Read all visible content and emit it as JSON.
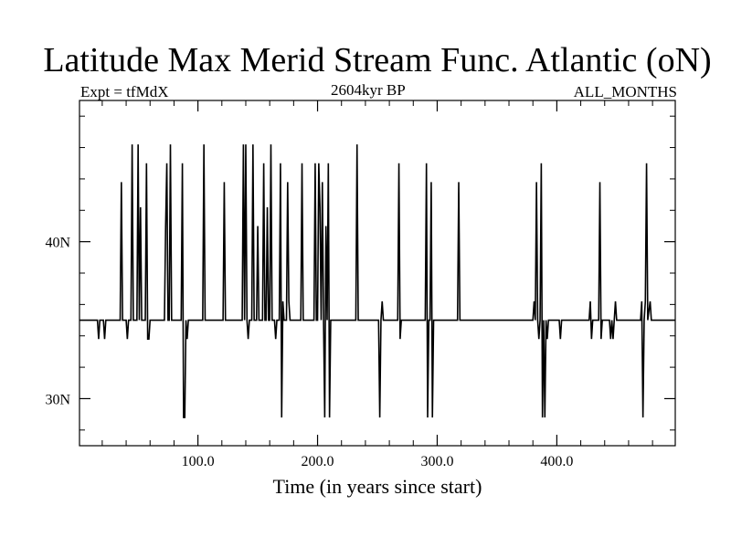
{
  "header": {
    "title": "Latitude Max Merid Stream Func. Atlantic (oN)",
    "experiment": "Expt = tfMdX",
    "period": "2604kyr BP",
    "months": "ALL_MONTHS"
  },
  "chart_data": {
    "type": "line",
    "title": "Latitude Max Merid Stream Func. Atlantic (oN)",
    "xlabel": "Time (in years since start)",
    "ylabel": "",
    "xlim": [
      1,
      499
    ],
    "ylim": [
      27,
      49
    ],
    "x_ticks": [
      100,
      200,
      300,
      400
    ],
    "x_tick_labels": [
      "100.0",
      "200.0",
      "300.0",
      "400.0"
    ],
    "y_ticks": [
      30,
      40
    ],
    "y_tick_labels": [
      "30N",
      "40N"
    ],
    "baseline": 35,
    "series": [
      {
        "points": [
          [
            1,
            35
          ],
          [
            16,
            35
          ],
          [
            17,
            33.8
          ],
          [
            18,
            35
          ],
          [
            21,
            35
          ],
          [
            22,
            33.8
          ],
          [
            23,
            35
          ],
          [
            35,
            35
          ],
          [
            36,
            43.8
          ],
          [
            37,
            35
          ],
          [
            40,
            35
          ],
          [
            41,
            33.8
          ],
          [
            42,
            35
          ],
          [
            44,
            35
          ],
          [
            45,
            46.2
          ],
          [
            46,
            35
          ],
          [
            49,
            35
          ],
          [
            50,
            46.2
          ],
          [
            51,
            35
          ],
          [
            52,
            42.2
          ],
          [
            53,
            35
          ],
          [
            56,
            35
          ],
          [
            57,
            45
          ],
          [
            58,
            33.8
          ],
          [
            59,
            33.8
          ],
          [
            60,
            35
          ],
          [
            72,
            35
          ],
          [
            73,
            41
          ],
          [
            74,
            45
          ],
          [
            75,
            35
          ],
          [
            76,
            35
          ],
          [
            77,
            46.2
          ],
          [
            78,
            35
          ],
          [
            86,
            35
          ],
          [
            87,
            45
          ],
          [
            88,
            28.8
          ],
          [
            89,
            28.8
          ],
          [
            90,
            35
          ],
          [
            91,
            33.8
          ],
          [
            92,
            35
          ],
          [
            104,
            35
          ],
          [
            105,
            46.2
          ],
          [
            106,
            35
          ],
          [
            121,
            35
          ],
          [
            122,
            43.8
          ],
          [
            123,
            35
          ],
          [
            137,
            35
          ],
          [
            138,
            46.2
          ],
          [
            139,
            35
          ],
          [
            140,
            46.2
          ],
          [
            141,
            35
          ],
          [
            142,
            33.8
          ],
          [
            143,
            35
          ],
          [
            145,
            35
          ],
          [
            146,
            46.2
          ],
          [
            147,
            35
          ],
          [
            149,
            35
          ],
          [
            150,
            41
          ],
          [
            151,
            35
          ],
          [
            154,
            35
          ],
          [
            155,
            45
          ],
          [
            156,
            35
          ],
          [
            157,
            35
          ],
          [
            158,
            42.2
          ],
          [
            159,
            35
          ],
          [
            160,
            35
          ],
          [
            161,
            46.2
          ],
          [
            162,
            35
          ],
          [
            164,
            35
          ],
          [
            165,
            33.8
          ],
          [
            166,
            35
          ],
          [
            168,
            35
          ],
          [
            169,
            45
          ],
          [
            170,
            28.8
          ],
          [
            171,
            36.2
          ],
          [
            172,
            35
          ],
          [
            174,
            35
          ],
          [
            175,
            43.8
          ],
          [
            176,
            36.2
          ],
          [
            177,
            35
          ],
          [
            186,
            35
          ],
          [
            187,
            45
          ],
          [
            188,
            35
          ],
          [
            197,
            35
          ],
          [
            198,
            45
          ],
          [
            199,
            35
          ],
          [
            200,
            35
          ],
          [
            201,
            45
          ],
          [
            202,
            42.2
          ],
          [
            203,
            35
          ],
          [
            204,
            43.8
          ],
          [
            205,
            35
          ],
          [
            206,
            28.8
          ],
          [
            207,
            41
          ],
          [
            208,
            35
          ],
          [
            209,
            45
          ],
          [
            210,
            28.8
          ],
          [
            211,
            35
          ],
          [
            213,
            35
          ],
          [
            232,
            35
          ],
          [
            233,
            46.2
          ],
          [
            234,
            35
          ],
          [
            251,
            35
          ],
          [
            252,
            28.8
          ],
          [
            253,
            35
          ],
          [
            254,
            36.2
          ],
          [
            255,
            35
          ],
          [
            267,
            35
          ],
          [
            268,
            45
          ],
          [
            269,
            33.8
          ],
          [
            270,
            35
          ],
          [
            290,
            35
          ],
          [
            291,
            45
          ],
          [
            292,
            28.8
          ],
          [
            293,
            35
          ],
          [
            294,
            35
          ],
          [
            295,
            43.8
          ],
          [
            296,
            28.8
          ],
          [
            297,
            35
          ],
          [
            317,
            35
          ],
          [
            318,
            43.8
          ],
          [
            319,
            35
          ],
          [
            380,
            35
          ],
          [
            381,
            36.2
          ],
          [
            382,
            35
          ],
          [
            383,
            43.8
          ],
          [
            384,
            35
          ],
          [
            385,
            33.8
          ],
          [
            386,
            35
          ],
          [
            387,
            45
          ],
          [
            388,
            28.8
          ],
          [
            389,
            35
          ],
          [
            390,
            28.8
          ],
          [
            391,
            35
          ],
          [
            392,
            33.8
          ],
          [
            393,
            35
          ],
          [
            402,
            35
          ],
          [
            403,
            33.8
          ],
          [
            404,
            35
          ],
          [
            427,
            35
          ],
          [
            428,
            36.2
          ],
          [
            429,
            33.8
          ],
          [
            430,
            35
          ],
          [
            435,
            35
          ],
          [
            436,
            43.8
          ],
          [
            437,
            33.8
          ],
          [
            438,
            35
          ],
          [
            443,
            35
          ],
          [
            444,
            35
          ],
          [
            445,
            33.8
          ],
          [
            446,
            35
          ],
          [
            447,
            33.8
          ],
          [
            448,
            35
          ],
          [
            449,
            36.2
          ],
          [
            450,
            35
          ],
          [
            470,
            35
          ],
          [
            471,
            36.2
          ],
          [
            472,
            28.8
          ],
          [
            473,
            35
          ],
          [
            474,
            36.2
          ],
          [
            475,
            45
          ],
          [
            476,
            35
          ],
          [
            478,
            36.2
          ],
          [
            479,
            35
          ],
          [
            499,
            35
          ]
        ]
      }
    ]
  }
}
